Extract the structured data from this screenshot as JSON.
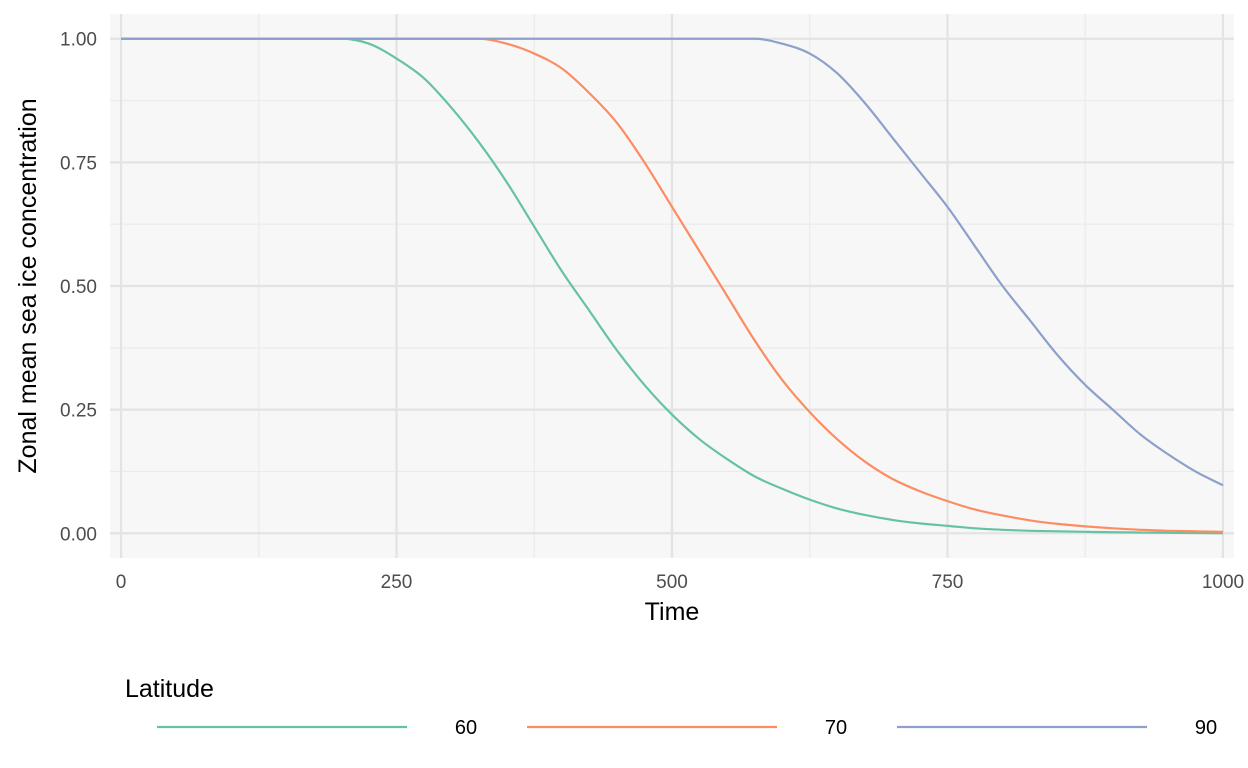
{
  "chart_data": {
    "type": "line",
    "title": "",
    "xlabel": "Time",
    "ylabel": "Zonal mean sea ice concentration",
    "xlim": [
      -10,
      1010
    ],
    "ylim": [
      -0.05,
      1.05
    ],
    "x_ticks": [
      0,
      250,
      500,
      750,
      1000
    ],
    "x_tick_labels": [
      "0",
      "250",
      "500",
      "750",
      "1000"
    ],
    "y_ticks": [
      0,
      0.25,
      0.5,
      0.75,
      1
    ],
    "y_tick_labels": [
      "0.00",
      "0.25",
      "0.50",
      "0.75",
      "1.00"
    ],
    "grid": true,
    "legend": {
      "title": "Latitude",
      "position": "bottom"
    },
    "x": [
      0,
      50,
      100,
      150,
      200,
      225,
      250,
      275,
      300,
      325,
      350,
      375,
      400,
      425,
      450,
      475,
      500,
      525,
      550,
      575,
      600,
      625,
      650,
      675,
      700,
      725,
      750,
      775,
      800,
      825,
      850,
      875,
      900,
      925,
      950,
      975,
      1000
    ],
    "series": [
      {
        "name": "60",
        "color": "#66c2a5",
        "values": [
          1.0,
          1.0,
          1.0,
          1.0,
          1.0,
          0.99,
          0.96,
          0.92,
          0.86,
          0.79,
          0.71,
          0.62,
          0.53,
          0.45,
          0.37,
          0.3,
          0.24,
          0.19,
          0.15,
          0.115,
          0.09,
          0.068,
          0.05,
          0.037,
          0.027,
          0.02,
          0.015,
          0.01,
          0.007,
          0.005,
          0.004,
          0.003,
          0.002,
          0.0015,
          0.001,
          0.0005,
          0.0
        ]
      },
      {
        "name": "70",
        "color": "#fc8d62",
        "values": [
          1.0,
          1.0,
          1.0,
          1.0,
          1.0,
          1.0,
          1.0,
          1.0,
          1.0,
          1.0,
          0.99,
          0.97,
          0.94,
          0.89,
          0.83,
          0.75,
          0.66,
          0.57,
          0.48,
          0.39,
          0.31,
          0.245,
          0.19,
          0.145,
          0.11,
          0.085,
          0.065,
          0.048,
          0.036,
          0.026,
          0.019,
          0.014,
          0.01,
          0.007,
          0.005,
          0.004,
          0.003
        ]
      },
      {
        "name": "90",
        "color": "#8da0cb",
        "values": [
          1.0,
          1.0,
          1.0,
          1.0,
          1.0,
          1.0,
          1.0,
          1.0,
          1.0,
          1.0,
          1.0,
          1.0,
          1.0,
          1.0,
          1.0,
          1.0,
          1.0,
          1.0,
          1.0,
          1.0,
          0.99,
          0.97,
          0.93,
          0.87,
          0.8,
          0.73,
          0.66,
          0.58,
          0.5,
          0.43,
          0.36,
          0.3,
          0.25,
          0.2,
          0.16,
          0.125,
          0.097
        ]
      }
    ]
  }
}
